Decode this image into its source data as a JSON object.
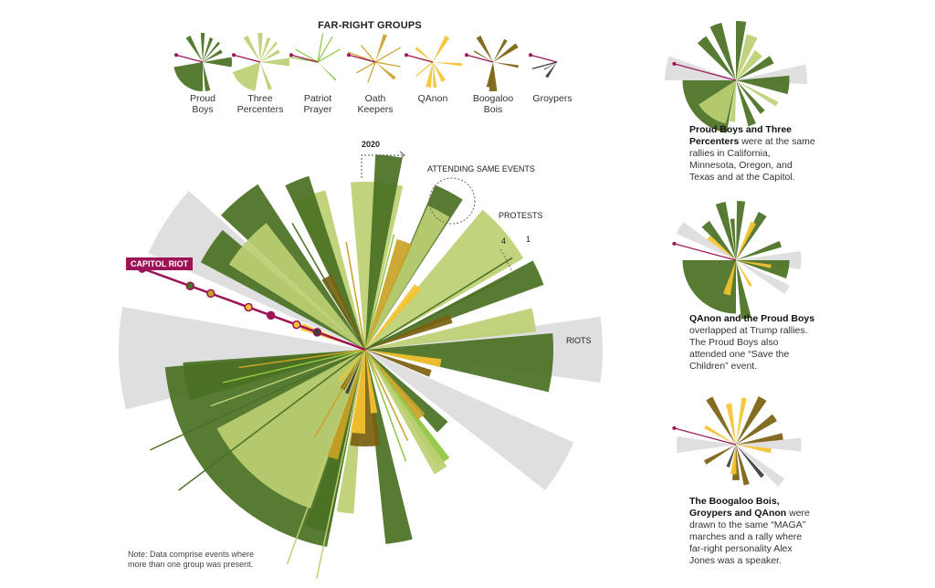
{
  "legend": {
    "title": "FAR-RIGHT GROUPS",
    "groups": [
      {
        "key": "pb",
        "label_1": "Proud",
        "label_2": "Boys",
        "color": "#4a7023"
      },
      {
        "key": "tp",
        "label_1": "Three",
        "label_2": "Percenters",
        "color": "#bccf72"
      },
      {
        "key": "pp",
        "label_1": "Patriot",
        "label_2": "Prayer",
        "color": "#8cc63f"
      },
      {
        "key": "ok",
        "label_1": "Oath",
        "label_2": "Keepers",
        "color": "#c9a227"
      },
      {
        "key": "qa",
        "label_1": "QAnon",
        "label_2": "",
        "color": "#f5c230"
      },
      {
        "key": "bb",
        "label_1": "Boogaloo",
        "label_2": "Bois",
        "color": "#7a5f10"
      },
      {
        "key": "gr",
        "label_1": "Groypers",
        "label_2": "",
        "color": "#3c3c3c"
      }
    ]
  },
  "colors": {
    "riot": "#dcdcdc",
    "capitol": "#9c1457"
  },
  "annotations": {
    "year": "2020",
    "attending": "ATTENDING SAME EVENTS",
    "protests": "PROTESTS",
    "scale_4": "4",
    "scale_1": "1",
    "riots": "RIOTS",
    "capitol_riot": "CAPITOL RIOT",
    "note": "Note: Data comprise events where more than one group was present."
  },
  "captions": [
    {
      "bold": "Proud Boys and Three Percenters",
      "text": " were at the same rallies in California, Minnesota, Oregon, and Texas and at the Capitol."
    },
    {
      "bold": "QAnon and the Proud Boys",
      "text": " overlapped at Trump rallies. The Proud Boys also attended one “Save the Children” event."
    },
    {
      "bold": "The Boogaloo Bois, Groypers and QAnon",
      "text": " were drawn to the same “MAGA” marches and a rally where far-right personality Alex Jones was a speaker."
    }
  ],
  "chart_data": {
    "type": "radial-bar",
    "title": "FAR-RIGHT GROUPS",
    "angle_unit": "degrees clockwise from the start of 2020 (timeline)",
    "wedges": [
      {
        "g": "riot",
        "a": -57,
        "w": 9,
        "v": 13
      },
      {
        "g": "riot",
        "a": -92,
        "w": 12,
        "v": 13.5
      },
      {
        "g": "riot",
        "a": 90,
        "w": 8,
        "v": 13
      },
      {
        "g": "riot",
        "a": 121,
        "w": 7,
        "v": 12.5
      },
      {
        "g": "pb",
        "a": -132,
        "w": 37,
        "v": 11
      },
      {
        "g": "tp",
        "a": -140,
        "w": 22,
        "v": 9.2
      },
      {
        "g": "pb",
        "a": -100,
        "w": 6,
        "v": 10
      },
      {
        "g": "pb",
        "a": -40,
        "w": 7,
        "v": 10.8
      },
      {
        "g": "pb",
        "a": -56,
        "w": 6,
        "v": 10.2
      },
      {
        "g": "tp",
        "a": -48,
        "w": 10,
        "v": 8.8
      },
      {
        "g": "tp",
        "a": -20,
        "w": 6,
        "v": 9
      },
      {
        "g": "pb",
        "a": -22,
        "w": 4,
        "v": 10
      },
      {
        "g": "tp",
        "a": 4,
        "w": 9,
        "v": 9.2
      },
      {
        "g": "pb",
        "a": 7,
        "w": 4,
        "v": 10.7
      },
      {
        "g": "pb",
        "a": 28,
        "w": 5,
        "v": 9.8
      },
      {
        "g": "tp",
        "a": 28,
        "w": 4.5,
        "v": 8.6
      },
      {
        "g": "tp",
        "a": 50,
        "w": 10,
        "v": 10
      },
      {
        "g": "pb",
        "a": 66,
        "w": 4,
        "v": 10.4
      },
      {
        "g": "tp",
        "a": 80,
        "w": 4,
        "v": 9.4
      },
      {
        "g": "pb",
        "a": 94,
        "w": 9,
        "v": 10.3
      },
      {
        "g": "pb",
        "a": 135,
        "w": 4,
        "v": 6
      },
      {
        "g": "pp",
        "a": 145,
        "w": 3,
        "v": 7.5
      },
      {
        "g": "tp",
        "a": 148,
        "w": 3,
        "v": 7.8
      },
      {
        "g": "pb",
        "a": 170,
        "w": 4,
        "v": 10.7
      },
      {
        "g": "tp",
        "a": -173,
        "w": 3,
        "v": 9
      },
      {
        "g": "pb",
        "a": -165,
        "w": 4,
        "v": 10.2
      },
      {
        "g": "bb",
        "a": 180,
        "w": 9,
        "v": 5.3
      },
      {
        "g": "qa",
        "a": -175,
        "w": 5,
        "v": 4.6
      },
      {
        "g": "ok",
        "a": -163,
        "w": 3,
        "v": 6.2
      },
      {
        "g": "qa",
        "a": 172,
        "w": 3,
        "v": 3.5
      },
      {
        "g": "ok",
        "a": 140,
        "w": 3,
        "v": 4.8
      },
      {
        "g": "bb",
        "a": 110,
        "w": 3,
        "v": 3.8
      },
      {
        "g": "qa",
        "a": 100,
        "w": 3,
        "v": 4.2
      },
      {
        "g": "bb",
        "a": 70,
        "w": 3,
        "v": 5
      },
      {
        "g": "ok",
        "a": 20,
        "w": 4,
        "v": 6.3
      },
      {
        "g": "qa",
        "a": 40,
        "w": 3,
        "v": 4.5
      },
      {
        "g": "bb",
        "a": -28,
        "w": 4,
        "v": 4.5
      },
      {
        "g": "qa",
        "a": -70,
        "w": 3,
        "v": 3.7
      },
      {
        "g": "gr",
        "a": -158,
        "w": 3,
        "v": 2.6
      },
      {
        "g": "bb",
        "a": -150,
        "w": 3,
        "v": 2.5
      },
      {
        "g": "qa",
        "a": -140,
        "w": 2,
        "v": 2.2
      }
    ],
    "lines": [
      {
        "g": "pb",
        "a": -115,
        "v": 13
      },
      {
        "g": "pb",
        "a": -127,
        "v": 12.8
      },
      {
        "g": "tp",
        "a": -110,
        "v": 9
      },
      {
        "g": "pp",
        "a": -103,
        "v": 8
      },
      {
        "g": "ok",
        "a": -98,
        "v": 7
      },
      {
        "g": "pb",
        "a": -30,
        "v": 8
      },
      {
        "g": "ok",
        "a": -10,
        "v": 6
      },
      {
        "g": "pp",
        "a": 14,
        "v": 6.5
      },
      {
        "g": "pb",
        "a": 58,
        "v": 9.5
      },
      {
        "g": "pb",
        "a": 63,
        "v": 8.8
      },
      {
        "g": "tp",
        "a": -160,
        "v": 12.5
      },
      {
        "g": "tp",
        "a": -168,
        "v": 12.8
      },
      {
        "g": "ok",
        "a": -150,
        "v": 5.5
      },
      {
        "g": "pp",
        "a": 160,
        "v": 6.5
      },
      {
        "g": "ok",
        "a": 155,
        "v": 5.5
      }
    ],
    "capitol_riot": {
      "a": -70,
      "points": [
        {
          "g": "capitol",
          "v": 13
        },
        {
          "g": "pb",
          "v": 10.2
        },
        {
          "g": "ok",
          "v": 9
        },
        {
          "g": "qa",
          "v": 6.8
        },
        {
          "g": "capitol",
          "v": 5.5
        },
        {
          "g": "qa",
          "v": 4
        },
        {
          "g": "gr",
          "v": 2.8
        }
      ]
    },
    "scale": {
      "max": 4,
      "min": 1
    }
  },
  "minis": [
    {
      "wedges": [
        [
          "riot",
          -80,
          10,
          12
        ],
        [
          "riot",
          85,
          8,
          12
        ],
        [
          "pb",
          -130,
          40,
          9
        ],
        [
          "tp",
          -145,
          22,
          7.5
        ],
        [
          "pb",
          -20,
          6,
          10
        ],
        [
          "pb",
          5,
          5,
          10
        ],
        [
          "tp",
          20,
          7,
          8
        ],
        [
          "tp",
          40,
          8,
          6
        ],
        [
          "pb",
          60,
          6,
          7
        ],
        [
          "pb",
          95,
          10,
          9
        ],
        [
          "pb",
          160,
          5,
          8
        ],
        [
          "tp",
          -175,
          4,
          7
        ],
        [
          "pb",
          -40,
          6,
          9
        ],
        [
          "tp",
          120,
          3,
          8
        ],
        [
          "pb",
          140,
          4,
          7
        ]
      ]
    },
    {
      "wedges": [
        [
          "riot",
          -60,
          6,
          11
        ],
        [
          "riot",
          90,
          8,
          11
        ],
        [
          "riot",
          120,
          5,
          10
        ],
        [
          "pb",
          -135,
          45,
          9
        ],
        [
          "pb",
          -40,
          6,
          8
        ],
        [
          "pb",
          -15,
          5,
          10
        ],
        [
          "pb",
          5,
          4,
          10
        ],
        [
          "pb",
          30,
          5,
          9
        ],
        [
          "pb",
          70,
          4,
          8
        ],
        [
          "pb",
          100,
          10,
          9
        ],
        [
          "pb",
          170,
          5,
          10
        ],
        [
          "qa",
          -165,
          6,
          6
        ],
        [
          "qa",
          25,
          4,
          7
        ],
        [
          "qa",
          100,
          3,
          6
        ],
        [
          "qa",
          -50,
          4,
          6
        ],
        [
          "qa",
          150,
          3,
          5
        ],
        [
          "pb",
          -5,
          3,
          7
        ]
      ]
    },
    {
      "wedges": [
        [
          "riot",
          -90,
          8,
          10
        ],
        [
          "riot",
          90,
          6,
          11
        ],
        [
          "riot",
          130,
          5,
          10
        ],
        [
          "bb",
          -30,
          4,
          9
        ],
        [
          "bb",
          30,
          5,
          9
        ],
        [
          "bb",
          55,
          5,
          8
        ],
        [
          "bb",
          80,
          4,
          8
        ],
        [
          "bb",
          180,
          6,
          6
        ],
        [
          "qa",
          -10,
          4,
          7
        ],
        [
          "qa",
          10,
          3,
          8
        ],
        [
          "qa",
          100,
          4,
          6
        ],
        [
          "qa",
          -175,
          6,
          5
        ],
        [
          "gr",
          -160,
          4,
          4
        ],
        [
          "gr",
          140,
          3,
          7
        ],
        [
          "bb",
          -120,
          4,
          6
        ],
        [
          "qa",
          -60,
          3,
          6
        ],
        [
          "bb",
          165,
          4,
          7
        ]
      ]
    }
  ],
  "legend_fans": {
    "pb": [
      [
        -140,
        40,
        8
      ],
      [
        -30,
        5,
        8
      ],
      [
        0,
        4,
        8
      ],
      [
        20,
        4,
        7
      ],
      [
        60,
        5,
        6
      ],
      [
        90,
        10,
        8
      ],
      [
        170,
        5,
        8
      ],
      [
        40,
        3,
        7
      ]
    ],
    "tp": [
      [
        -140,
        30,
        8
      ],
      [
        -30,
        5,
        8
      ],
      [
        0,
        5,
        8
      ],
      [
        20,
        4,
        7
      ],
      [
        60,
        5,
        6
      ],
      [
        90,
        8,
        8
      ],
      [
        160,
        4,
        8
      ],
      [
        40,
        3,
        7
      ]
    ],
    "pp": [
      [
        -80,
        1,
        8
      ],
      [
        -60,
        1,
        7
      ],
      [
        10,
        1,
        8
      ],
      [
        30,
        1,
        8
      ],
      [
        60,
        1,
        7
      ],
      [
        135,
        2,
        7
      ]
    ],
    "ok": [
      [
        -70,
        1,
        8
      ],
      [
        -40,
        1,
        6
      ],
      [
        20,
        4,
        8
      ],
      [
        60,
        1,
        8
      ],
      [
        100,
        1,
        7
      ],
      [
        130,
        4,
        7
      ],
      [
        -160,
        1,
        6
      ],
      [
        -120,
        1,
        6
      ]
    ],
    "qa": [
      [
        -75,
        1,
        6
      ],
      [
        -50,
        4,
        6
      ],
      [
        30,
        5,
        8
      ],
      [
        95,
        3,
        8
      ],
      [
        150,
        6,
        6
      ],
      [
        -170,
        6,
        7
      ],
      [
        -130,
        1,
        6
      ],
      [
        175,
        4,
        7
      ]
    ],
    "bb": [
      [
        -30,
        5,
        8
      ],
      [
        30,
        4,
        7
      ],
      [
        55,
        5,
        8
      ],
      [
        100,
        3,
        7
      ],
      [
        180,
        8,
        8
      ],
      [
        -170,
        5,
        7
      ],
      [
        -60,
        2,
        6
      ]
    ],
    "gr": [
      [
        -105,
        1,
        7
      ],
      [
        -120,
        2,
        4
      ],
      [
        -145,
        5,
        5
      ]
    ]
  }
}
